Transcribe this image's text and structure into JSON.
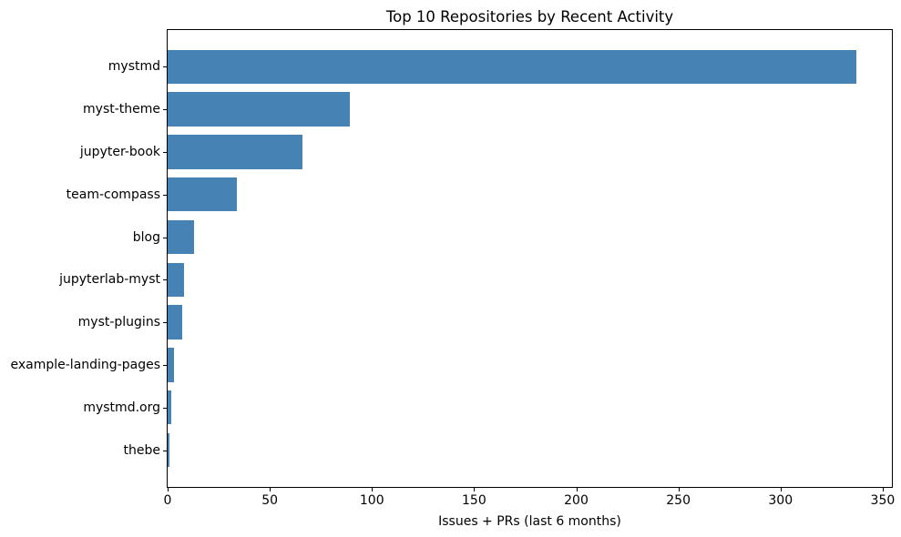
{
  "chart_data": {
    "type": "bar",
    "orientation": "horizontal",
    "title": "Top 10 Repositories by Recent Activity",
    "xlabel": "Issues + PRs (last 6 months)",
    "ylabel": "",
    "categories": [
      "mystmd",
      "myst-theme",
      "jupyter-book",
      "team-compass",
      "blog",
      "jupyterlab-myst",
      "myst-plugins",
      "example-landing-pages",
      "mystmd.org",
      "thebe"
    ],
    "values": [
      337,
      89,
      66,
      34,
      13,
      8,
      7,
      3,
      2,
      1
    ],
    "xticks": [
      0,
      50,
      100,
      150,
      200,
      250,
      300,
      350
    ],
    "xlim": [
      0,
      354.5
    ],
    "bar_color": "#4682B4",
    "axis_color": "#000000",
    "background_color": "#ffffff",
    "grid": false,
    "legend": "none"
  }
}
